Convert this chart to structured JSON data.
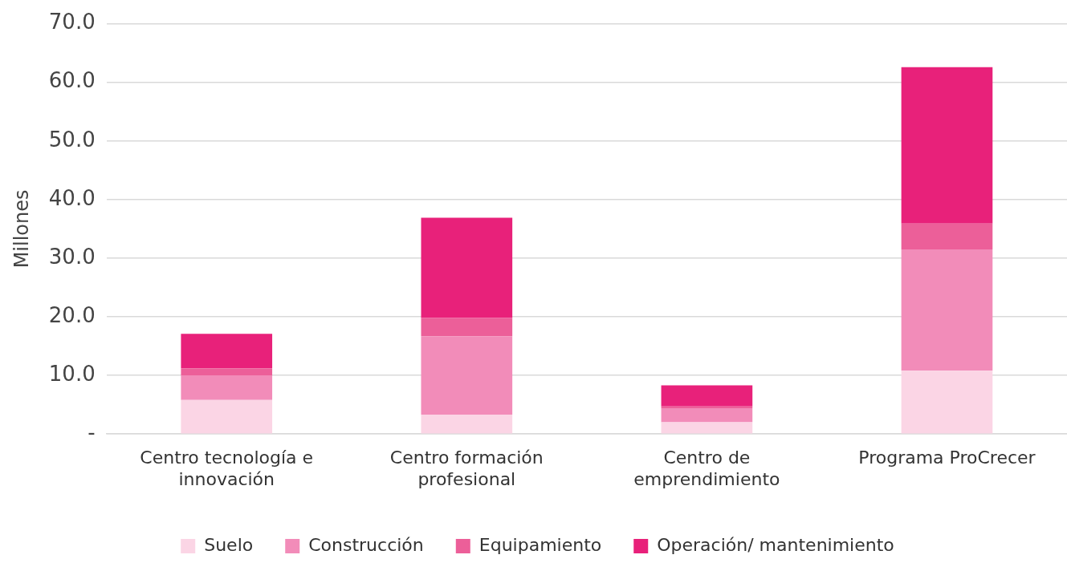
{
  "chart_data": {
    "type": "bar",
    "stacked": true,
    "ylabel": "Millones",
    "categories": [
      "Centro tecnología e innovación",
      "Centro formación profesional",
      "Centro de emprendimiento",
      "Programa ProCrecer"
    ],
    "series": [
      {
        "name": "Suelo",
        "color": "#fbd5e5",
        "values": [
          5.8,
          3.3,
          2.0,
          10.8
        ]
      },
      {
        "name": "Construcción",
        "color": "#f28cb9",
        "values": [
          4.2,
          13.4,
          2.4,
          20.7
        ]
      },
      {
        "name": "Equipamiento",
        "color": "#ec5f99",
        "values": [
          1.2,
          3.1,
          0.3,
          4.4
        ]
      },
      {
        "name": "Operación/ mantenimiento",
        "color": "#e8217a",
        "values": [
          5.9,
          17.1,
          3.6,
          26.7
        ]
      }
    ],
    "ylim": [
      0,
      70
    ],
    "yticks": [
      {
        "value": 0,
        "label": "-"
      },
      {
        "value": 10,
        "label": "10.0"
      },
      {
        "value": 20,
        "label": "20.0"
      },
      {
        "value": 30,
        "label": "30.0"
      },
      {
        "value": 40,
        "label": "40.0"
      },
      {
        "value": 50,
        "label": "50.0"
      },
      {
        "value": 60,
        "label": "60.0"
      },
      {
        "value": 70,
        "label": "70.0"
      }
    ],
    "grid": "y",
    "legend": "bottom"
  }
}
